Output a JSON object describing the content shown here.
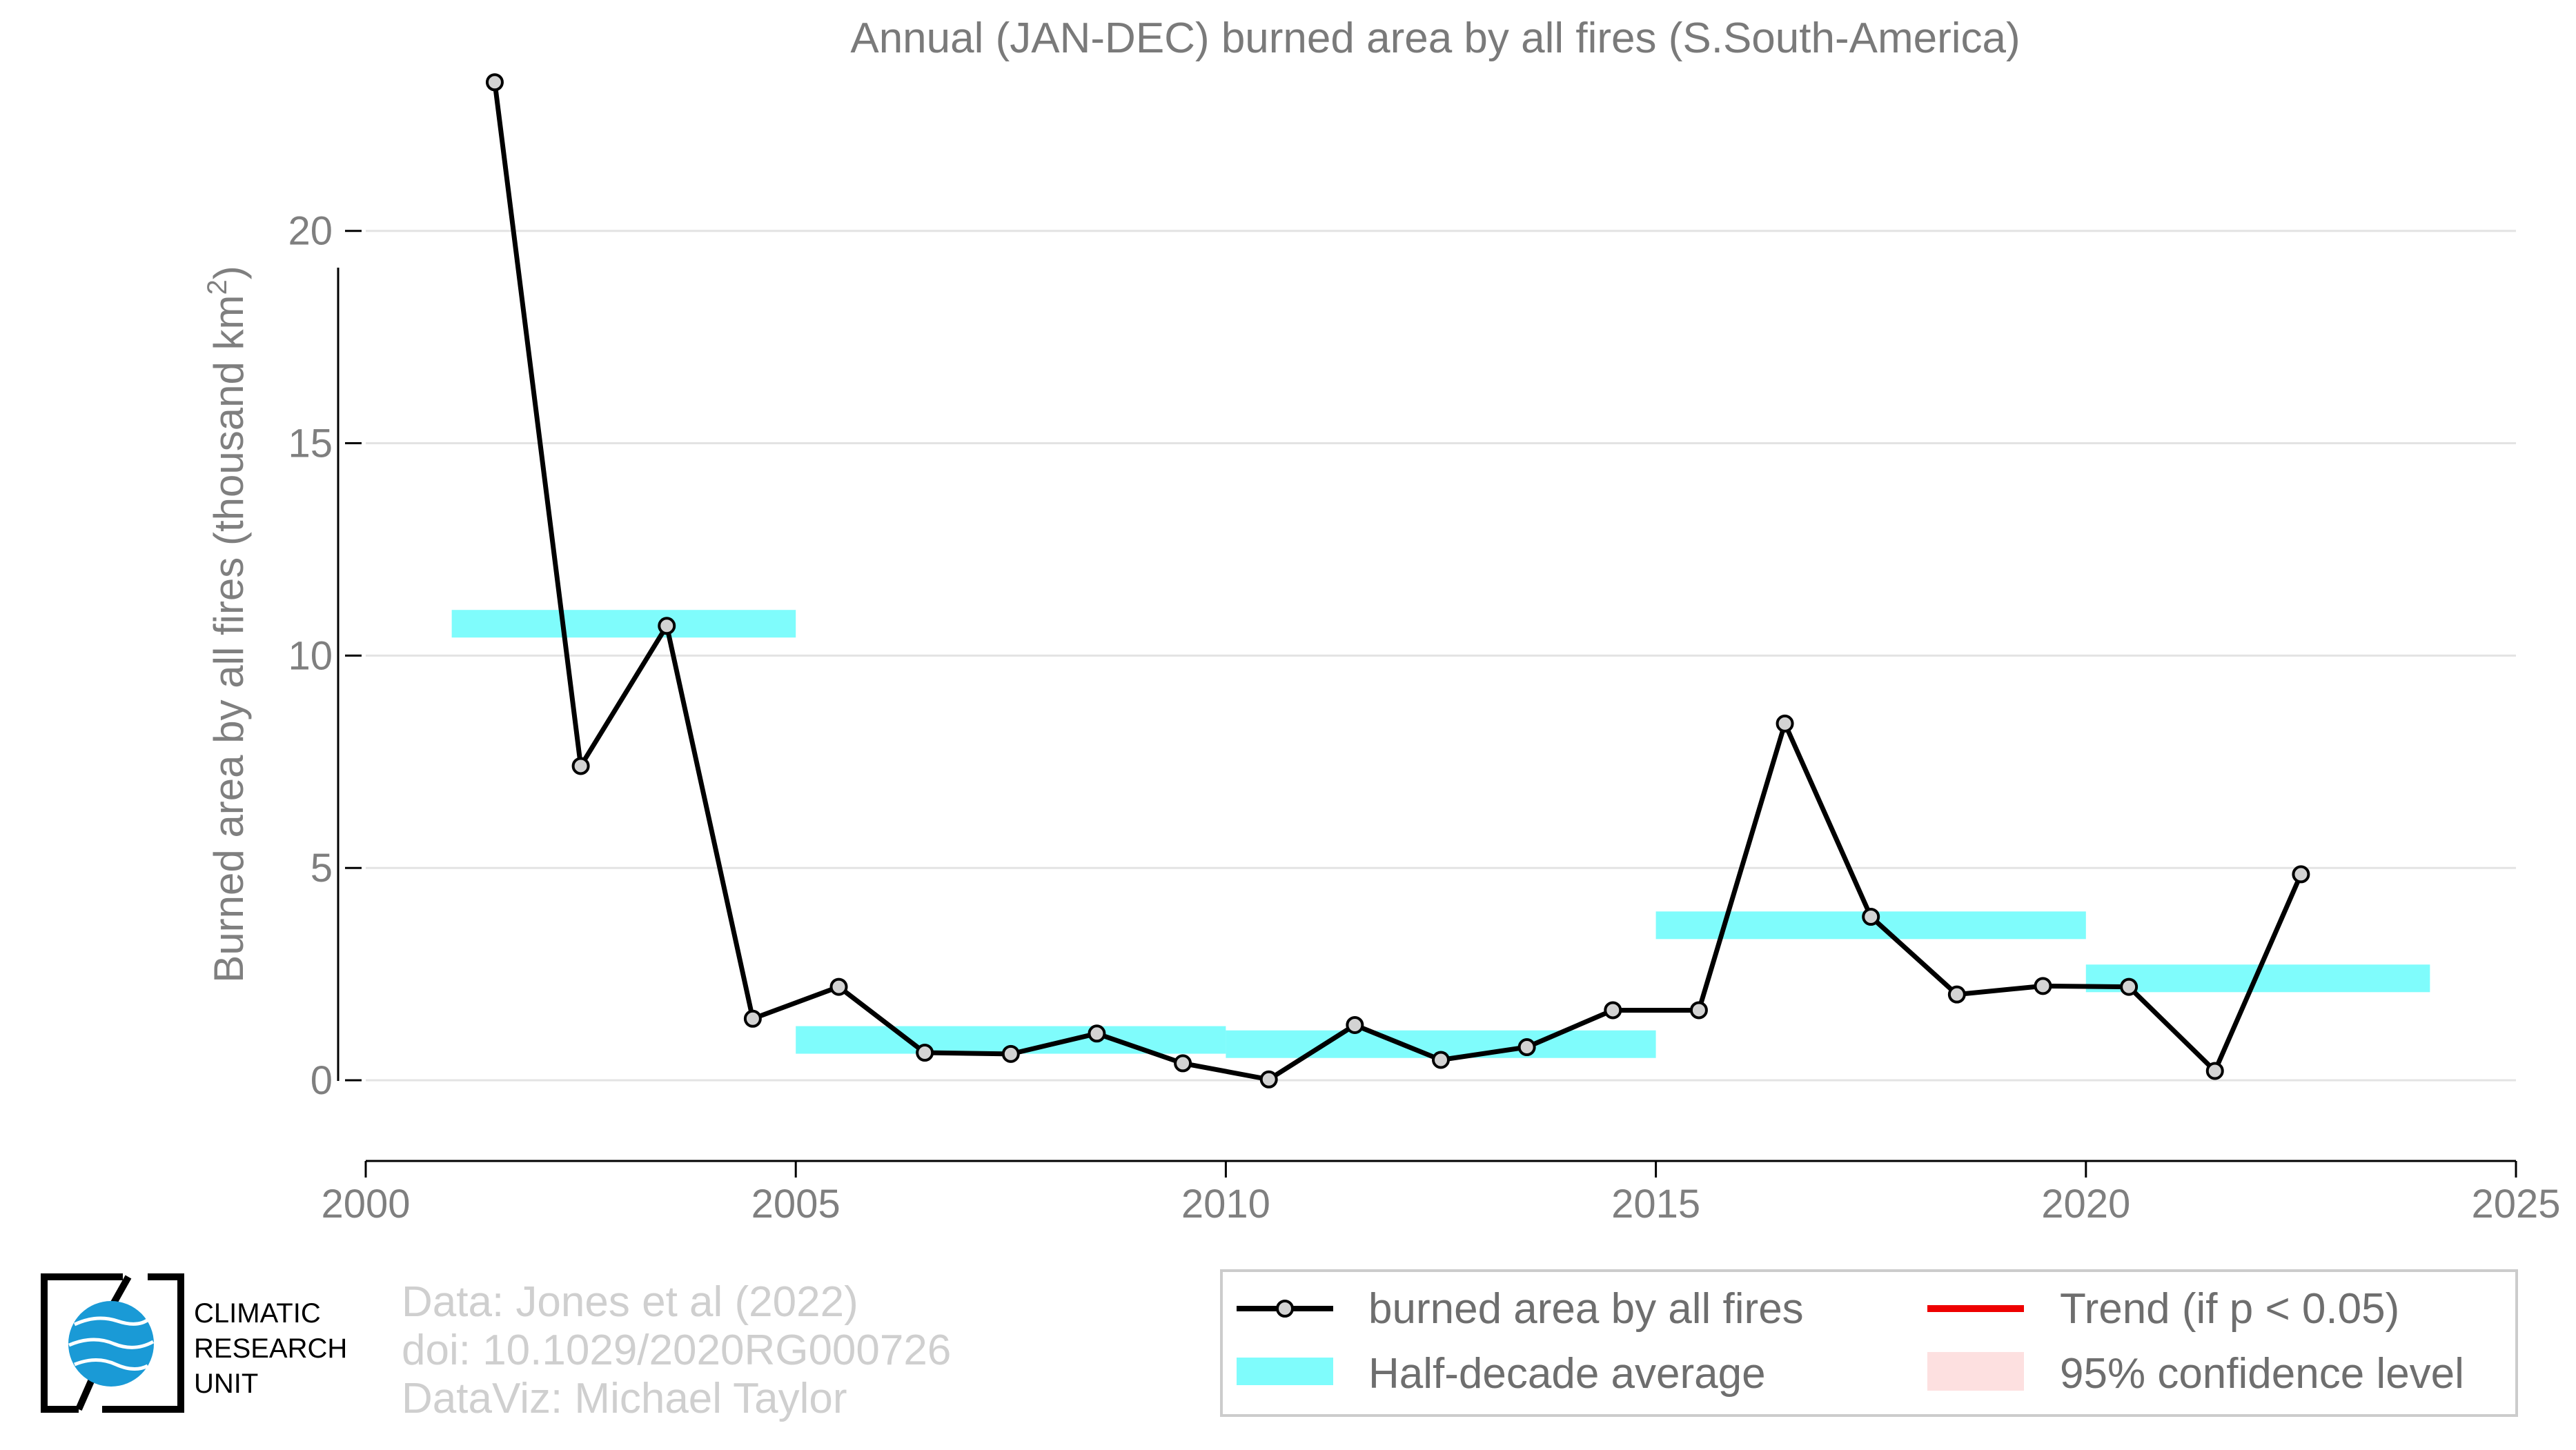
{
  "title": "Annual (JAN-DEC) burned area by all fires (S.South-America)",
  "ylabel_main": "Burned area by all fires (thousand km",
  "ylabel_sup": "2",
  "ylabel_end": ")",
  "chart_data": {
    "type": "line",
    "title": "Annual (JAN-DEC) burned area by all fires (S.South-America)",
    "xlabel": "",
    "ylabel": "Burned area by all fires (thousand km2)",
    "xlim": [
      2000,
      2025
    ],
    "ylim": [
      -1.9,
      24.3
    ],
    "xticks": [
      2000,
      2005,
      2010,
      2015,
      2020,
      2025
    ],
    "yticks": [
      0,
      5,
      10,
      15,
      20
    ],
    "grid": "horizontal",
    "legend_position": "bottom-right",
    "series": [
      {
        "name": "burned area by all fires",
        "color": "#000000",
        "x": [
          2001.5,
          2002.5,
          2003.5,
          2004.5,
          2005.5,
          2006.5,
          2007.5,
          2008.5,
          2009.5,
          2010.5,
          2011.5,
          2012.5,
          2013.5,
          2014.5,
          2015.5,
          2016.5,
          2017.5,
          2018.5,
          2019.5,
          2020.5,
          2021.5,
          2022.5
        ],
        "y": [
          23.5,
          7.4,
          10.7,
          1.45,
          2.2,
          0.65,
          0.62,
          1.1,
          0.4,
          0.02,
          1.3,
          0.48,
          0.78,
          1.65,
          1.65,
          8.4,
          3.85,
          2.02,
          2.22,
          2.2,
          0.22,
          4.85
        ]
      }
    ],
    "half_decade_averages": {
      "name": "Half-decade average",
      "color": "#7ffcfc",
      "bands": [
        {
          "x0": 2001,
          "x1": 2005,
          "y": 10.75
        },
        {
          "x0": 2005,
          "x1": 2010,
          "y": 0.95
        },
        {
          "x0": 2010,
          "x1": 2015,
          "y": 0.85
        },
        {
          "x0": 2015,
          "x1": 2020,
          "y": 3.65
        },
        {
          "x0": 2020,
          "x1": 2024,
          "y": 2.4
        }
      ]
    },
    "legend": [
      {
        "label": "burned area by all fires",
        "kind": "line-marker",
        "color": "#000000"
      },
      {
        "label": "Trend (if p < 0.05)",
        "kind": "line",
        "color": "#ee0000"
      },
      {
        "label": "Half-decade average",
        "kind": "band",
        "color": "#7ffcfc"
      },
      {
        "label": "95% confidence level",
        "kind": "band",
        "color": "#fde0e0"
      }
    ]
  },
  "credits": [
    "Data: Jones et al (2022)",
    "doi: 10.1029/2020RG000726",
    "DataViz: Michael Taylor"
  ],
  "logo": {
    "lines": [
      "CLIMATIC",
      "RESEARCH",
      "UNIT"
    ]
  }
}
